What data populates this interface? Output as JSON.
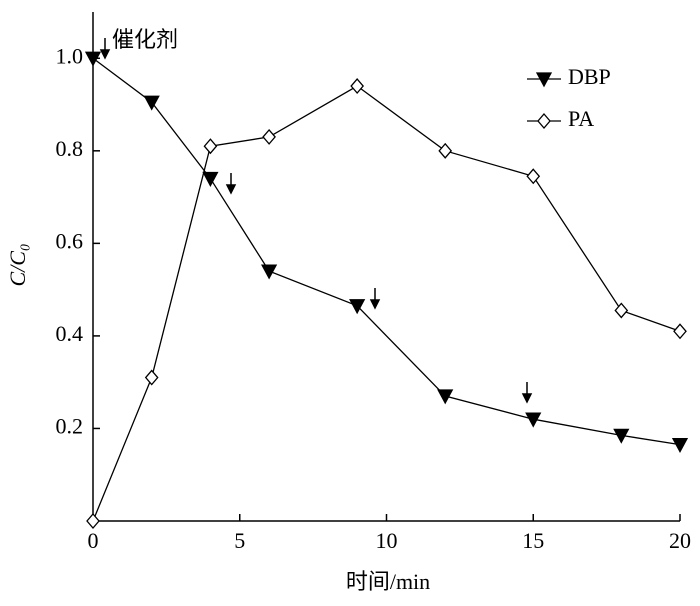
{
  "chart_data": {
    "type": "line",
    "x_label": "时间/min",
    "y_label": "C/C₀",
    "annotation": "催化剂",
    "xlim": [
      0,
      20
    ],
    "ylim": [
      0,
      1.1
    ],
    "xticks": [
      0,
      5,
      10,
      15,
      20
    ],
    "yticks": [
      0.2,
      0.4,
      0.6,
      {
        "value": 0.8,
        "label": "0.8"
      },
      {
        "value": 1,
        "label": "1.0"
      }
    ],
    "legend": "upper-right",
    "series": [
      {
        "name": "DBP",
        "color": "#000000",
        "marker": "triangle-down",
        "x": [
          0,
          2,
          4,
          6,
          9,
          12,
          15,
          18,
          20
        ],
        "values": [
          1.0,
          0.905,
          0.74,
          0.54,
          0.465,
          0.27,
          0.22,
          0.185,
          0.165
        ]
      },
      {
        "name": "PA",
        "color": "#000000",
        "marker": "diamond-open",
        "x": [
          0,
          2,
          4,
          6,
          9,
          12,
          15,
          18,
          20
        ],
        "values": [
          0,
          0.31,
          0.81,
          0.83,
          0.94,
          0.8,
          0.745,
          0.455,
          0.41
        ]
      }
    ]
  }
}
